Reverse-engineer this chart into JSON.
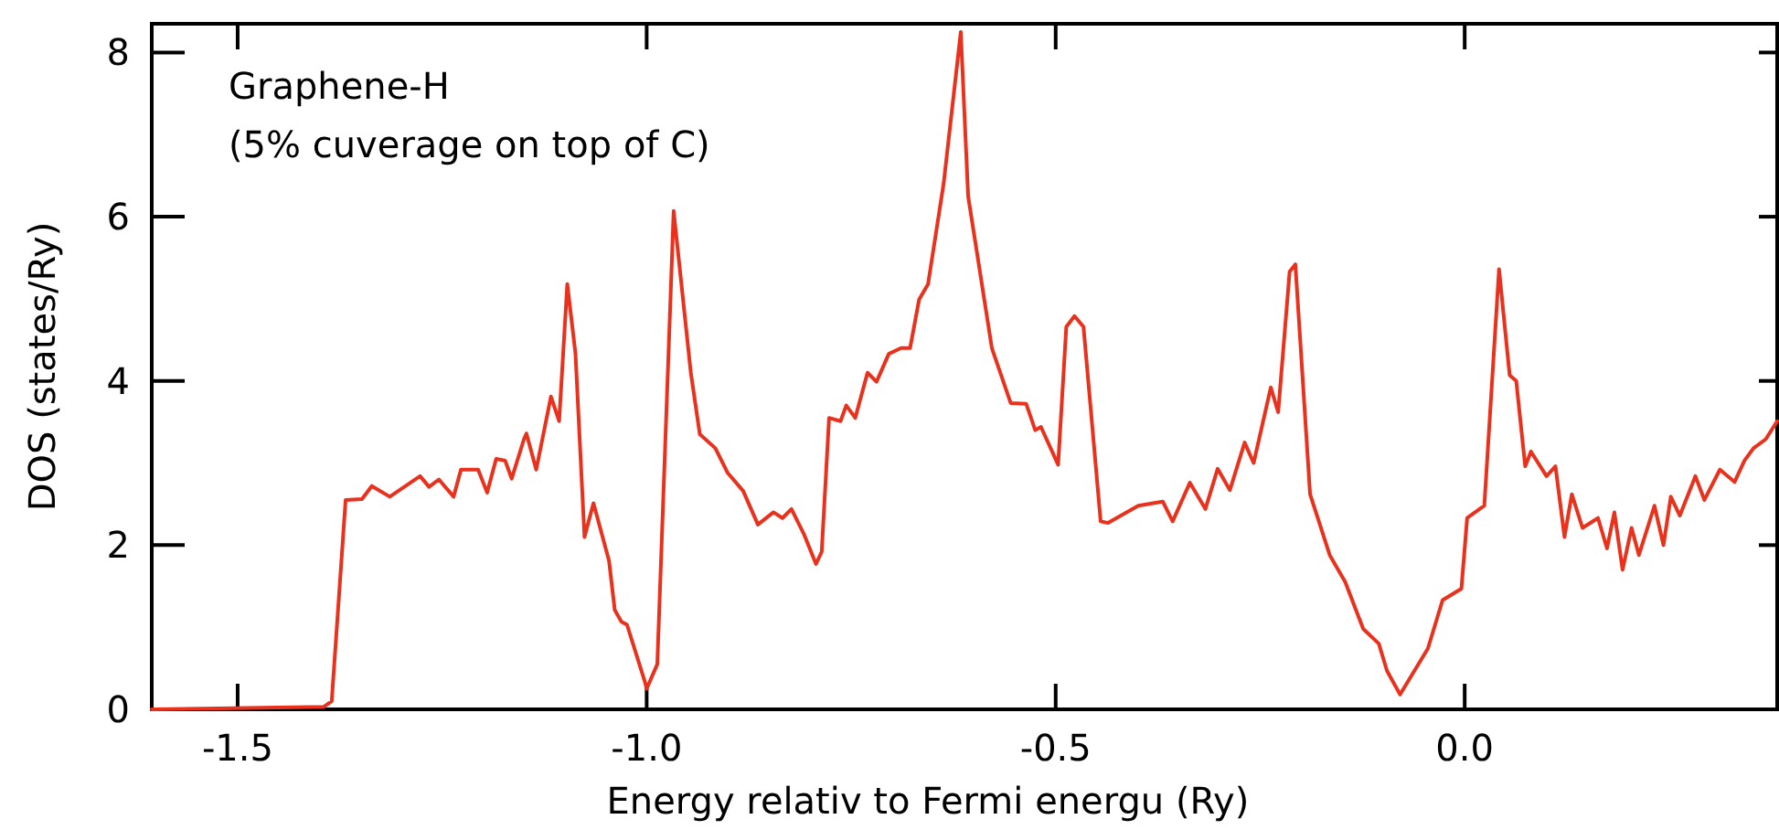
{
  "chart_data": {
    "type": "line",
    "xlabel": "Energy relativ to Fermi energu (Ry)",
    "ylabel": "DOS (states/Ry)",
    "annotations": [
      "Graphene-H",
      "(5% cuverage on top of C)"
    ],
    "xlim": [
      -1.605,
      0.382
    ],
    "xticks": [
      {
        "value": -1.5,
        "label": "-1.5"
      },
      {
        "value": -1.0,
        "label": "-1.0"
      },
      {
        "value": -0.5,
        "label": "-0.5"
      },
      {
        "value": 0,
        "label": "0.0"
      }
    ],
    "ylim": [
      0,
      8.35
    ],
    "yticks": [
      0,
      2,
      4,
      6,
      8
    ],
    "grid": false,
    "marker": "none",
    "line_style": "solid",
    "series": [
      {
        "color": "#e8321e",
        "x": [
          -1.605,
          -1.395,
          -1.385,
          -1.368,
          -1.348,
          -1.336,
          -1.314,
          -1.277,
          -1.266,
          -1.254,
          -1.236,
          -1.227,
          -1.206,
          -1.195,
          -1.184,
          -1.173,
          -1.165,
          -1.15,
          -1.147,
          -1.135,
          -1.117,
          -1.107,
          -1.097,
          -1.087,
          -1.076,
          -1.065,
          -1.046,
          -1.039,
          -1.031,
          -1.024,
          -1.002,
          -1.0,
          -0.987,
          -0.967,
          -0.946,
          -0.935,
          -0.916,
          -0.901,
          -0.882,
          -0.864,
          -0.845,
          -0.834,
          -0.823,
          -0.808,
          -0.793,
          -0.786,
          -0.777,
          -0.763,
          -0.756,
          -0.745,
          -0.73,
          -0.719,
          -0.704,
          -0.689,
          -0.678,
          -0.667,
          -0.656,
          -0.637,
          -0.616,
          -0.607,
          -0.578,
          -0.555,
          -0.536,
          -0.525,
          -0.518,
          -0.497,
          -0.487,
          -0.477,
          -0.466,
          -0.445,
          -0.436,
          -0.399,
          -0.369,
          -0.357,
          -0.336,
          -0.317,
          -0.302,
          -0.287,
          -0.269,
          -0.258,
          -0.237,
          -0.228,
          -0.214,
          -0.207,
          -0.189,
          -0.165,
          -0.146,
          -0.124,
          -0.105,
          -0.095,
          -0.079,
          -0.045,
          -0.027,
          -0.004,
          0.003,
          0.024,
          0.042,
          0.055,
          0.063,
          0.074,
          0.081,
          0.1,
          0.111,
          0.122,
          0.131,
          0.144,
          0.163,
          0.174,
          0.183,
          0.193,
          0.204,
          0.213,
          0.232,
          0.243,
          0.252,
          0.263,
          0.282,
          0.293,
          0.312,
          0.33,
          0.342,
          0.353,
          0.368,
          0.382
        ],
        "values": [
          0,
          0.03,
          0.1,
          2.55,
          2.56,
          2.72,
          2.59,
          2.84,
          2.71,
          2.8,
          2.59,
          2.92,
          2.92,
          2.64,
          3.05,
          3.03,
          2.81,
          3.29,
          3.36,
          2.92,
          3.81,
          3.51,
          5.18,
          4.33,
          2.1,
          2.51,
          1.81,
          1.21,
          1.07,
          1.03,
          0.33,
          0.25,
          0.55,
          6.07,
          4.1,
          3.35,
          3.18,
          2.88,
          2.66,
          2.25,
          2.4,
          2.33,
          2.44,
          2.14,
          1.77,
          1.92,
          3.55,
          3.51,
          3.7,
          3.55,
          4.1,
          3.99,
          4.33,
          4.4,
          4.4,
          4.99,
          5.18,
          6.4,
          8.25,
          6.25,
          4.4,
          3.73,
          3.72,
          3.4,
          3.44,
          2.98,
          4.66,
          4.79,
          4.66,
          2.29,
          2.27,
          2.48,
          2.53,
          2.29,
          2.76,
          2.44,
          2.93,
          2.67,
          3.25,
          3.0,
          3.92,
          3.62,
          5.33,
          5.42,
          2.62,
          1.88,
          1.55,
          0.98,
          0.8,
          0.47,
          0.18,
          0.74,
          1.33,
          1.47,
          2.33,
          2.48,
          5.36,
          4.07,
          4.0,
          2.96,
          3.14,
          2.84,
          2.96,
          2.1,
          2.62,
          2.21,
          2.33,
          1.96,
          2.4,
          1.7,
          2.21,
          1.88,
          2.48,
          2.0,
          2.59,
          2.36,
          2.84,
          2.55,
          2.92,
          2.77,
          3.03,
          3.18,
          3.29,
          3.51
        ]
      }
    ]
  }
}
